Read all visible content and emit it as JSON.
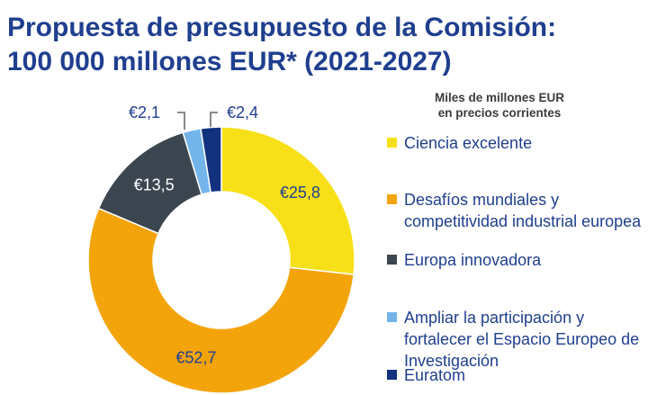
{
  "title_line1": "Propuesta de presupuesto de la Comisión:",
  "title_line2": "100 000 millones EUR* (2021-2027)",
  "legend_header_line1": "Miles de millones EUR",
  "legend_header_line2": "en precios corrientes",
  "legend": [
    {
      "label": "Ciencia excelente",
      "color": "#f7e017"
    },
    {
      "label": "Desafíos mundiales y competitividad industrial europea",
      "color": "#f4a40b"
    },
    {
      "label": "Europa innovadora",
      "color": "#3c4650"
    },
    {
      "label": "Ampliar la participación y fortalecer el Espacio Europeo de Investigación",
      "color": "#73b4ea"
    },
    {
      "label": "Euratom",
      "color": "#12327f"
    }
  ],
  "chart_data": {
    "type": "pie",
    "subtype": "donut",
    "title": "Propuesta de presupuesto de la Comisión: 100 000 millones EUR* (2021-2027)",
    "unit": "Miles de millones EUR en precios corrientes",
    "categories": [
      "Ciencia excelente",
      "Desafíos mundiales y competitividad industrial europea",
      "Europa innovadora",
      "Ampliar la participación y fortalecer el Espacio Europeo de Investigación",
      "Euratom"
    ],
    "values": [
      25.8,
      52.7,
      13.5,
      2.1,
      2.4
    ],
    "labels": [
      "€25,8",
      "€52,7",
      "€13,5",
      "€2,1",
      "€2,4"
    ],
    "colors": [
      "#f7e017",
      "#f4a40b",
      "#3c4650",
      "#73b4ea",
      "#12327f"
    ],
    "legend_position": "right"
  }
}
